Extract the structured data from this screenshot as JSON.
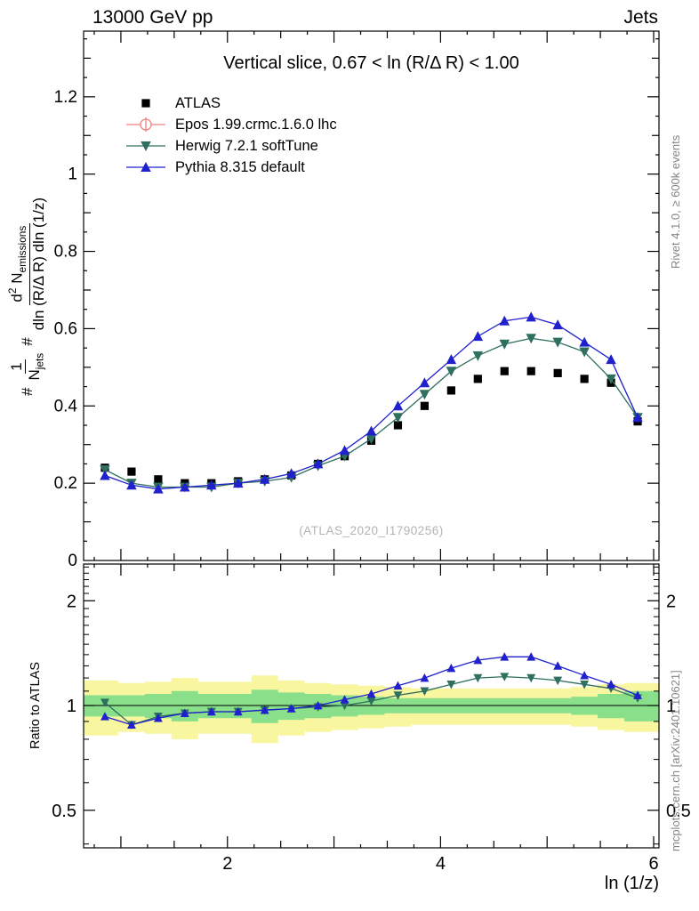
{
  "header": {
    "left": "13000 GeV pp",
    "right": "Jets"
  },
  "title": "Vertical slice, 0.67 < ln (R/Δ R) < 1.00",
  "watermark": "(ATLAS_2020_I1790256)",
  "side_notes": {
    "top_right": "Rivet 4.1.0, ≥ 600k events",
    "bottom_right": "mcplots.cern.ch [arXiv:2401.10621]"
  },
  "axes": {
    "x_label": "ln (1/z)",
    "ratio_y_label": "Ratio to ATLAS",
    "main_y": {
      "hash1": "#",
      "one": "1",
      "N1": "N",
      "jets": "jets",
      "hash2": "#",
      "d": "d",
      "d_exp": "2",
      "N2": " N",
      "emissions": "emissions",
      "den2": "dln (R/Δ R) dln (1/z)"
    }
  },
  "legend": [
    {
      "label": "ATLAS",
      "color": "#000000",
      "marker": "square",
      "line": false
    },
    {
      "label": "Epos 1.99.crmc.1.6.0 lhc",
      "color": "#f08080",
      "marker": "circle-cross",
      "line": true
    },
    {
      "label": "Herwig 7.2.1 softTune",
      "color": "#2e6f5f",
      "marker": "triangle-down",
      "line": true
    },
    {
      "label": "Pythia 8.315 default",
      "color": "#2020cc",
      "marker": "triangle-up",
      "line": true
    }
  ],
  "chart_data": {
    "type": "line",
    "title": "Vertical slice, 0.67 < ln (R/Δ R) < 1.00",
    "xlabel": "ln (1/z)",
    "xlim": [
      0.65,
      6.05
    ],
    "xticks_major": [
      2,
      4,
      6
    ],
    "x": [
      0.85,
      1.1,
      1.35,
      1.6,
      1.85,
      2.1,
      2.35,
      2.6,
      2.85,
      3.1,
      3.35,
      3.6,
      3.85,
      4.1,
      4.35,
      4.6,
      4.85,
      5.1,
      5.35,
      5.6,
      5.85
    ],
    "main": {
      "ylim": [
        0,
        1.37
      ],
      "yticks": [
        0,
        0.2,
        0.4,
        0.6,
        0.8,
        1,
        1.2
      ],
      "series": [
        {
          "name": "ATLAS",
          "color": "#000000",
          "marker": "square",
          "line": false,
          "values": [
            0.24,
            0.23,
            0.21,
            0.2,
            0.2,
            0.205,
            0.21,
            0.22,
            0.25,
            0.27,
            0.31,
            0.35,
            0.4,
            0.44,
            0.47,
            0.49,
            0.49,
            0.485,
            0.47,
            0.46,
            0.36
          ]
        },
        {
          "name": "Epos 1.99.crmc.1.6.0 lhc",
          "color": "#f08080",
          "marker": "circle-cross",
          "line": true,
          "values": []
        },
        {
          "name": "Herwig 7.2.1 softTune",
          "color": "#2e6f5f",
          "marker": "triangle-down",
          "line": true,
          "values": [
            0.235,
            0.2,
            0.19,
            0.19,
            0.19,
            0.2,
            0.205,
            0.215,
            0.245,
            0.27,
            0.315,
            0.37,
            0.43,
            0.49,
            0.53,
            0.56,
            0.575,
            0.565,
            0.54,
            0.47,
            0.37
          ]
        },
        {
          "name": "Pythia 8.315 default",
          "color": "#2020cc",
          "marker": "triangle-up",
          "line": true,
          "values": [
            0.22,
            0.195,
            0.185,
            0.19,
            0.195,
            0.2,
            0.21,
            0.225,
            0.25,
            0.285,
            0.335,
            0.4,
            0.46,
            0.52,
            0.58,
            0.62,
            0.63,
            0.61,
            0.565,
            0.52,
            0.37
          ]
        }
      ]
    },
    "ratio": {
      "ylim": [
        0.39,
        2.55
      ],
      "log": true,
      "yticks_major": [
        0.5,
        1,
        2
      ],
      "yticks_minor": [
        0.4,
        0.6,
        0.7,
        0.8,
        0.9,
        1.1,
        1.2,
        1.3,
        1.4,
        1.5,
        1.6,
        1.7,
        1.8,
        1.9,
        2.1,
        2.2,
        2.3,
        2.4,
        2.5
      ],
      "series": [
        {
          "name": "Herwig 7.2.1 softTune",
          "color": "#2e6f5f",
          "marker": "triangle-down",
          "values": [
            1.02,
            0.88,
            0.93,
            0.95,
            0.96,
            0.96,
            0.97,
            0.98,
            0.99,
            1.0,
            1.03,
            1.07,
            1.1,
            1.15,
            1.2,
            1.21,
            1.2,
            1.18,
            1.15,
            1.12,
            1.05
          ]
        },
        {
          "name": "Pythia 8.315 default",
          "color": "#2020cc",
          "marker": "triangle-up",
          "values": [
            0.93,
            0.88,
            0.92,
            0.95,
            0.96,
            0.96,
            0.97,
            0.98,
            1.0,
            1.04,
            1.08,
            1.14,
            1.2,
            1.28,
            1.35,
            1.38,
            1.38,
            1.3,
            1.22,
            1.15,
            1.07
          ]
        }
      ],
      "bands": {
        "green_color": "#8ae08a",
        "yellow_color": "#f9f6a0",
        "green_lo": [
          0.93,
          0.93,
          0.92,
          0.9,
          0.92,
          0.92,
          0.89,
          0.91,
          0.92,
          0.93,
          0.94,
          0.95,
          0.95,
          0.95,
          0.95,
          0.95,
          0.95,
          0.95,
          0.94,
          0.92,
          0.9
        ],
        "green_hi": [
          1.07,
          1.07,
          1.08,
          1.1,
          1.08,
          1.08,
          1.11,
          1.09,
          1.08,
          1.07,
          1.06,
          1.05,
          1.05,
          1.05,
          1.05,
          1.05,
          1.05,
          1.05,
          1.06,
          1.08,
          1.1
        ],
        "yellow_lo": [
          0.82,
          0.84,
          0.83,
          0.8,
          0.83,
          0.83,
          0.78,
          0.82,
          0.84,
          0.85,
          0.86,
          0.87,
          0.88,
          0.88,
          0.88,
          0.88,
          0.88,
          0.88,
          0.87,
          0.85,
          0.84
        ],
        "yellow_hi": [
          1.18,
          1.16,
          1.17,
          1.2,
          1.17,
          1.17,
          1.22,
          1.18,
          1.16,
          1.15,
          1.14,
          1.13,
          1.12,
          1.12,
          1.12,
          1.12,
          1.12,
          1.12,
          1.13,
          1.15,
          1.16
        ]
      }
    }
  }
}
